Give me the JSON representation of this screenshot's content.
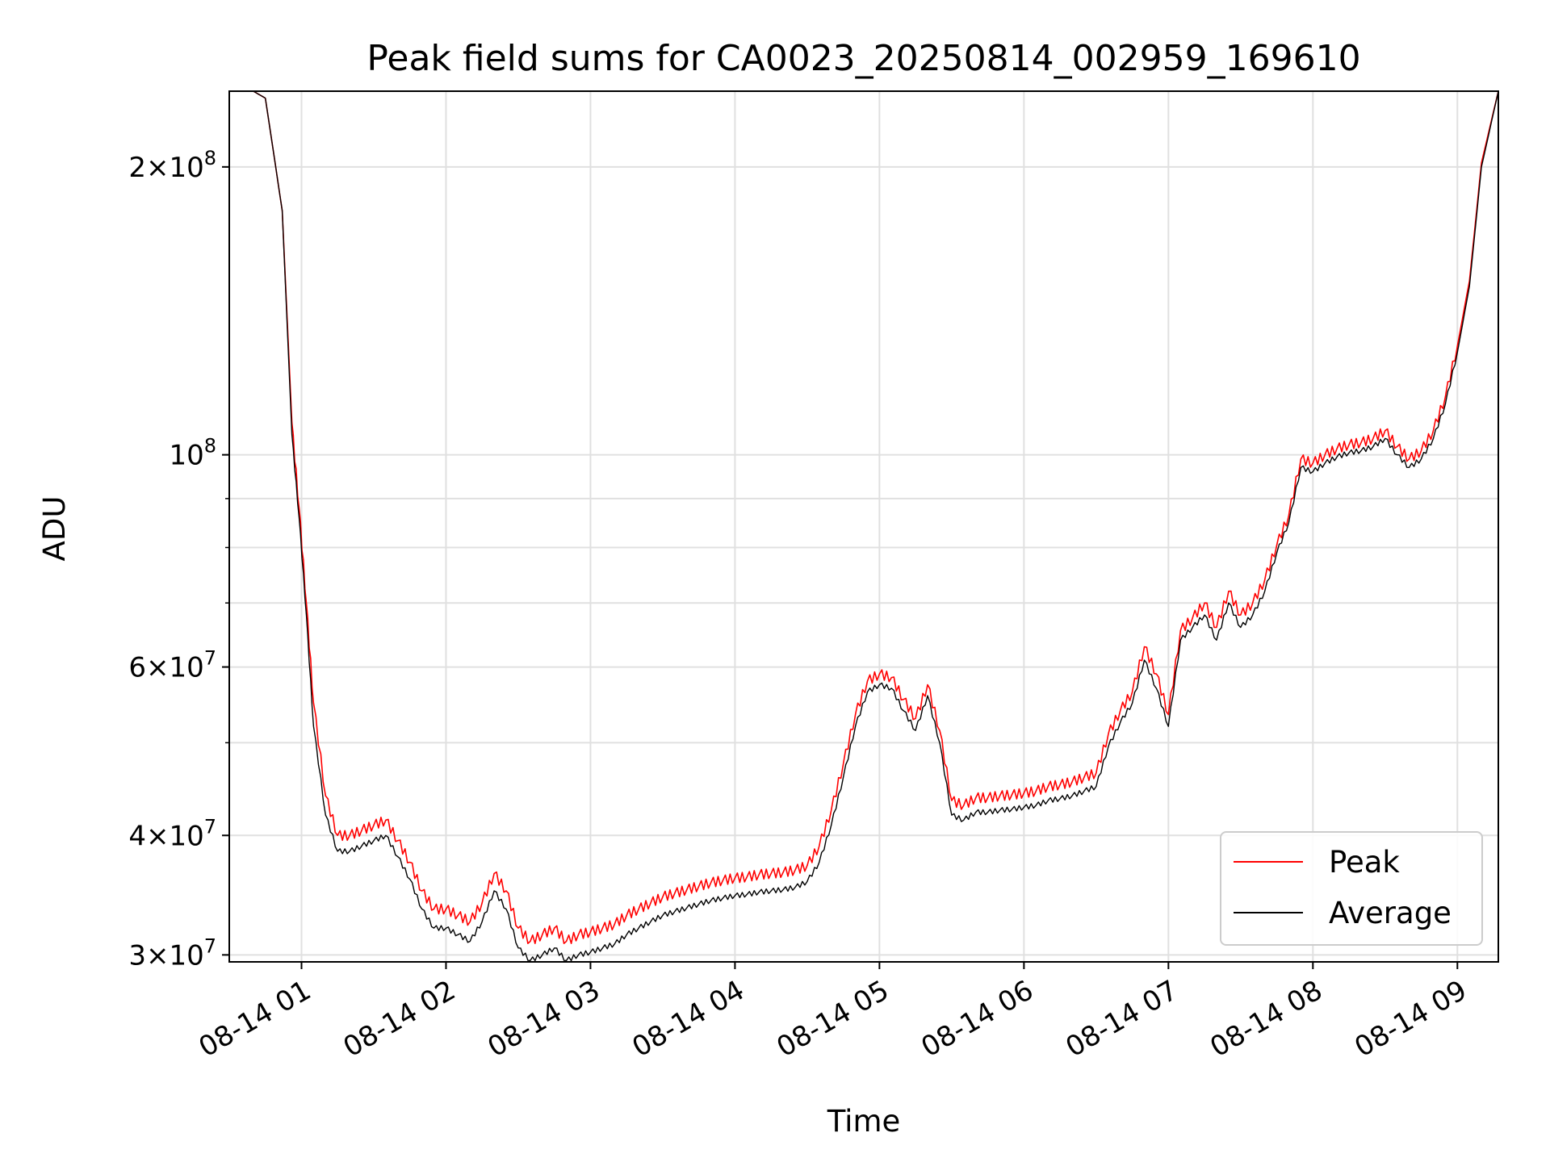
{
  "chart_data": {
    "type": "line",
    "title": "Peak field sums for CA0023_20250814_002959_169610",
    "xlabel": "Time",
    "ylabel": "ADU",
    "x_scale": "time",
    "y_scale": "log",
    "xlim": [
      "08-14 00:30",
      "09:17"
    ],
    "ylim": [
      29500000,
      240000000
    ],
    "grid": true,
    "legend": "lower-right",
    "xticks": [
      "08-14 01",
      "08-14 02",
      "08-14 03",
      "08-14 04",
      "08-14 05",
      "08-14 06",
      "08-14 07",
      "08-14 08",
      "08-14 09"
    ],
    "yticks": [
      {
        "value": 30000000,
        "mantissa": "3",
        "exp": "7"
      },
      {
        "value": 40000000,
        "mantissa": "4",
        "exp": "7"
      },
      {
        "value": 60000000,
        "mantissa": "6",
        "exp": "7"
      },
      {
        "value": 100000000,
        "mantissa": "",
        "exp": "8"
      },
      {
        "value": 200000000,
        "mantissa": "2",
        "exp": "8"
      }
    ],
    "series": [
      {
        "name": "Peak",
        "color": "#ff0000"
      },
      {
        "name": "Average",
        "color": "#000000"
      }
    ],
    "x": [
      "00:30",
      "00:40",
      "00:45",
      "00:52",
      "00:56",
      "00:59",
      "01:02",
      "01:05",
      "01:10",
      "01:15",
      "01:20",
      "01:25",
      "01:30",
      "01:35",
      "01:40",
      "01:45",
      "01:50",
      "01:55",
      "02:00",
      "02:05",
      "02:10",
      "02:15",
      "02:20",
      "02:25",
      "02:30",
      "02:35",
      "02:40",
      "02:45",
      "02:50",
      "02:55",
      "03:00",
      "03:05",
      "03:10",
      "03:15",
      "03:20",
      "03:25",
      "03:30",
      "03:35",
      "03:40",
      "03:45",
      "03:50",
      "03:55",
      "04:00",
      "04:05",
      "04:10",
      "04:15",
      "04:20",
      "04:25",
      "04:30",
      "04:35",
      "04:40",
      "04:45",
      "04:50",
      "04:55",
      "05:00",
      "05:05",
      "05:10",
      "05:15",
      "05:20",
      "05:25",
      "05:30",
      "05:35",
      "05:40",
      "05:45",
      "05:50",
      "05:55",
      "06:00",
      "06:05",
      "06:10",
      "06:15",
      "06:20",
      "06:25",
      "06:30",
      "06:35",
      "06:40",
      "06:45",
      "06:50",
      "06:55",
      "07:00",
      "07:05",
      "07:10",
      "07:15",
      "07:20",
      "07:25",
      "07:30",
      "07:35",
      "07:40",
      "07:45",
      "07:50",
      "07:55",
      "08:00",
      "08:05",
      "08:10",
      "08:15",
      "08:20",
      "08:25",
      "08:30",
      "08:35",
      "08:40",
      "08:45",
      "08:50",
      "08:55",
      "09:00",
      "09:05",
      "09:10",
      "09:17"
    ],
    "avg": [
      240000000,
      240000000,
      236000000,
      180000000,
      105000000,
      86000000,
      68000000,
      52000000,
      42000000,
      38500000,
      38500000,
      39000000,
      39500000,
      40000000,
      38000000,
      36000000,
      33500000,
      32000000,
      32000000,
      31500000,
      31000000,
      32500000,
      35000000,
      33500000,
      30500000,
      29600000,
      30000000,
      30500000,
      29600000,
      30000000,
      30200000,
      30500000,
      30800000,
      31500000,
      32000000,
      32500000,
      33000000,
      33300000,
      33600000,
      33900000,
      34200000,
      34400000,
      34600000,
      34700000,
      34900000,
      35000000,
      35100000,
      35300000,
      35800000,
      37500000,
      41000000,
      46000000,
      52000000,
      56500000,
      57500000,
      57000000,
      54000000,
      51500000,
      56000000,
      50000000,
      42000000,
      41500000,
      42300000,
      42300000,
      42500000,
      42600000,
      42800000,
      43000000,
      43500000,
      43700000,
      44000000,
      44500000,
      45000000,
      49500000,
      52500000,
      55000000,
      61000000,
      57000000,
      52000000,
      64000000,
      66000000,
      68000000,
      64000000,
      70000000,
      66000000,
      68000000,
      72000000,
      79000000,
      85000000,
      97000000,
      96000000,
      98000000,
      99500000,
      100500000,
      101000000,
      102000000,
      104000000,
      100000000,
      97000000,
      99000000,
      104000000,
      113000000,
      128000000,
      150000000,
      200000000,
      240000000
    ],
    "peak": [
      240000000,
      240000000,
      236000000,
      180000000,
      108000000,
      88000000,
      70000000,
      55000000,
      44000000,
      40000000,
      40000000,
      40500000,
      41000000,
      41500000,
      39500000,
      37500000,
      35000000,
      33500000,
      33500000,
      33000000,
      32500000,
      34000000,
      36500000,
      35000000,
      32000000,
      31000000,
      31500000,
      32000000,
      31000000,
      31500000,
      31700000,
      32000000,
      32300000,
      33000000,
      33500000,
      34000000,
      34500000,
      34800000,
      35100000,
      35400000,
      35700000,
      35900000,
      36100000,
      36200000,
      36400000,
      36500000,
      36600000,
      36800000,
      37200000,
      39000000,
      42500000,
      47500000,
      53500000,
      58000000,
      59000000,
      58500000,
      55500000,
      53000000,
      57500000,
      51500000,
      43500000,
      43000000,
      43800000,
      43800000,
      44000000,
      44100000,
      44300000,
      44500000,
      45000000,
      45200000,
      45500000,
      46000000,
      46500000,
      51000000,
      54000000,
      56500000,
      63000000,
      59000000,
      53500000,
      65500000,
      67500000,
      70000000,
      66000000,
      72000000,
      68000000,
      70000000,
      74000000,
      80500000,
      86500000,
      99000000,
      98000000,
      100000000,
      101500000,
      102500000,
      103000000,
      104000000,
      106000000,
      102000000,
      99000000,
      101000000,
      106000000,
      115000000,
      130000000,
      152000000,
      202000000,
      240000000
    ]
  }
}
